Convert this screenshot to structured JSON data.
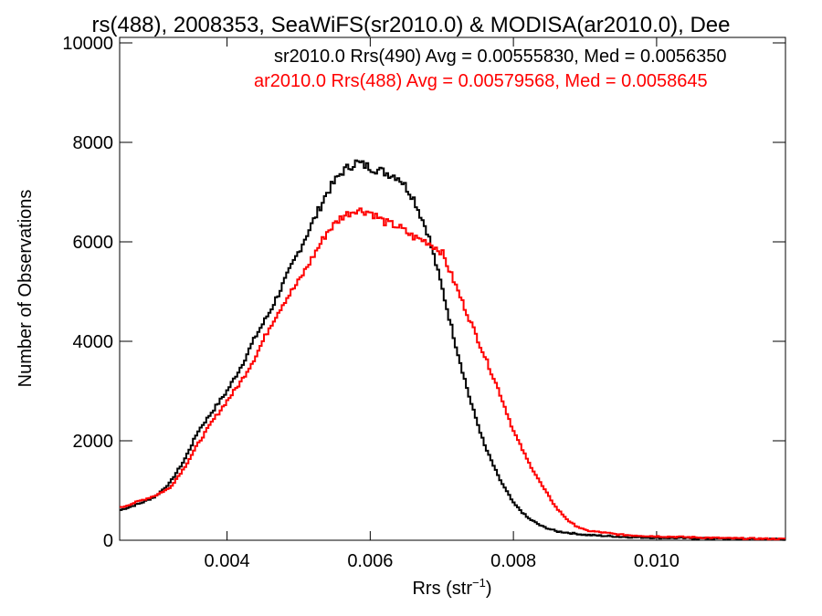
{
  "chart_data": {
    "type": "line",
    "title": "rs(488), 2008353, SeaWiFS(sr2010.0) & MODISA(ar2010.0), Dee",
    "xlabel": "Rrs (str",
    "xlabel_sup": "−1",
    "xlabel_close": ")",
    "ylabel": "Number of Observations",
    "xlim": [
      0.0025,
      0.0118
    ],
    "ylim": [
      0,
      10000
    ],
    "x_ticks": [
      0.004,
      0.006,
      0.008,
      0.01
    ],
    "x_tick_labels": [
      "0.004",
      "0.006",
      "0.008",
      "0.010"
    ],
    "y_ticks": [
      0,
      2000,
      4000,
      6000,
      8000,
      10000
    ],
    "y_tick_labels": [
      "0",
      "2000",
      "4000",
      "6000",
      "8000",
      "10000"
    ],
    "grid": false,
    "legend_entries": [
      "sr2010.0 Rrs(490) Avg = 0.00555830, Med = 0.0056350",
      "ar2010.0 Rrs(488) Avg = 0.00579568, Med = 0.0058645"
    ],
    "series": [
      {
        "name": "sr2010.0 Rrs(490)",
        "color": "#000000",
        "points": [
          [
            0.0025,
            600
          ],
          [
            0.0028,
            750
          ],
          [
            0.003,
            880
          ],
          [
            0.0032,
            1150
          ],
          [
            0.0034,
            1600
          ],
          [
            0.0036,
            2200
          ],
          [
            0.0038,
            2600
          ],
          [
            0.004,
            3000
          ],
          [
            0.0042,
            3500
          ],
          [
            0.0044,
            4100
          ],
          [
            0.0046,
            4600
          ],
          [
            0.0048,
            5200
          ],
          [
            0.005,
            5800
          ],
          [
            0.0052,
            6400
          ],
          [
            0.0054,
            7000
          ],
          [
            0.0056,
            7400
          ],
          [
            0.0058,
            7600
          ],
          [
            0.006,
            7500
          ],
          [
            0.0062,
            7400
          ],
          [
            0.0064,
            7300
          ],
          [
            0.0066,
            6900
          ],
          [
            0.0068,
            6200
          ],
          [
            0.007,
            5100
          ],
          [
            0.0072,
            3900
          ],
          [
            0.0074,
            2800
          ],
          [
            0.0076,
            1900
          ],
          [
            0.0078,
            1250
          ],
          [
            0.008,
            750
          ],
          [
            0.0082,
            450
          ],
          [
            0.0084,
            280
          ],
          [
            0.0086,
            180
          ],
          [
            0.009,
            110
          ],
          [
            0.0095,
            70
          ],
          [
            0.01,
            50
          ],
          [
            0.0105,
            40
          ],
          [
            0.011,
            30
          ],
          [
            0.0118,
            20
          ]
        ]
      },
      {
        "name": "ar2010.0 Rrs(488)",
        "color": "#ff0000",
        "points": [
          [
            0.0025,
            650
          ],
          [
            0.0028,
            800
          ],
          [
            0.003,
            900
          ],
          [
            0.0032,
            1050
          ],
          [
            0.0034,
            1450
          ],
          [
            0.0036,
            1950
          ],
          [
            0.0038,
            2400
          ],
          [
            0.004,
            2800
          ],
          [
            0.0042,
            3200
          ],
          [
            0.0044,
            3700
          ],
          [
            0.0046,
            4300
          ],
          [
            0.0048,
            4800
          ],
          [
            0.005,
            5200
          ],
          [
            0.0052,
            5700
          ],
          [
            0.0054,
            6200
          ],
          [
            0.0056,
            6500
          ],
          [
            0.0058,
            6650
          ],
          [
            0.006,
            6600
          ],
          [
            0.0062,
            6400
          ],
          [
            0.0064,
            6300
          ],
          [
            0.0066,
            6100
          ],
          [
            0.0068,
            6000
          ],
          [
            0.007,
            5800
          ],
          [
            0.0072,
            5100
          ],
          [
            0.0074,
            4400
          ],
          [
            0.0076,
            3700
          ],
          [
            0.0078,
            3000
          ],
          [
            0.008,
            2200
          ],
          [
            0.0082,
            1600
          ],
          [
            0.0084,
            1100
          ],
          [
            0.0086,
            650
          ],
          [
            0.0088,
            350
          ],
          [
            0.009,
            200
          ],
          [
            0.0095,
            110
          ],
          [
            0.01,
            80
          ],
          [
            0.0105,
            60
          ],
          [
            0.011,
            40
          ],
          [
            0.0118,
            25
          ]
        ]
      }
    ]
  }
}
